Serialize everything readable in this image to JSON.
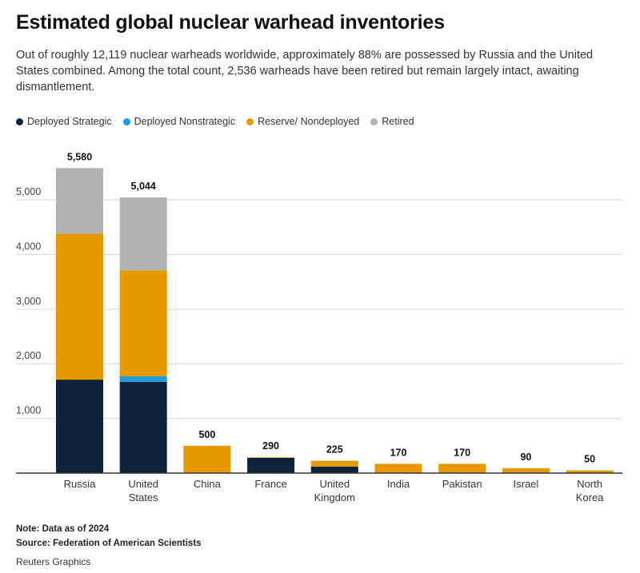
{
  "header": {
    "title": "Estimated global nuclear warhead inventories",
    "subtitle": "Out of roughly 12,119 nuclear warheads worldwide, approximately 88% are possessed by Russia and the United States combined. Among the total count, 2,536 warheads have been retired but remain largely intact, awaiting dismantlement."
  },
  "legend": [
    {
      "label": "Deployed Strategic",
      "color": "#0b2239"
    },
    {
      "label": "Deployed Nonstrategic",
      "color": "#1f9be0"
    },
    {
      "label": "Reserve/ Nondeployed",
      "color": "#e79a00"
    },
    {
      "label": "Retired",
      "color": "#b3b3b3"
    }
  ],
  "chart_data": {
    "type": "bar",
    "stacked": true,
    "categories": [
      [
        "Russia"
      ],
      [
        "United",
        "States"
      ],
      [
        "China"
      ],
      [
        "France"
      ],
      [
        "United",
        "Kingdom"
      ],
      [
        "India"
      ],
      [
        "Pakistan"
      ],
      [
        "Israel"
      ],
      [
        "North",
        "Korea"
      ]
    ],
    "series": [
      {
        "name": "Deployed Strategic",
        "color": "#0b2239",
        "values": [
          1710,
          1670,
          0,
          280,
          120,
          0,
          0,
          0,
          0
        ]
      },
      {
        "name": "Deployed Nonstrategic",
        "color": "#1f9be0",
        "values": [
          0,
          100,
          0,
          0,
          0,
          0,
          0,
          0,
          0
        ]
      },
      {
        "name": "Reserve/ Nondeployed",
        "color": "#e79a00",
        "values": [
          2670,
          1938,
          500,
          10,
          105,
          170,
          170,
          90,
          50
        ]
      },
      {
        "name": "Retired",
        "color": "#b3b3b3",
        "values": [
          1200,
          1336,
          0,
          0,
          0,
          0,
          0,
          0,
          0
        ]
      }
    ],
    "totals": [
      "5,580",
      "5,044",
      "500",
      "290",
      "225",
      "170",
      "170",
      "90",
      "50"
    ],
    "ylim": [
      0,
      5600
    ],
    "yticks": [
      1000,
      2000,
      3000,
      4000,
      5000
    ],
    "ytick_labels": [
      "1,000",
      "2,000",
      "3,000",
      "4,000",
      "5,000"
    ],
    "grid": true,
    "legend_position": "top-left"
  },
  "footer": {
    "note": "Note: Data as of 2024",
    "source": "Source: Federation of American Scientists",
    "credit": "Reuters Graphics"
  }
}
